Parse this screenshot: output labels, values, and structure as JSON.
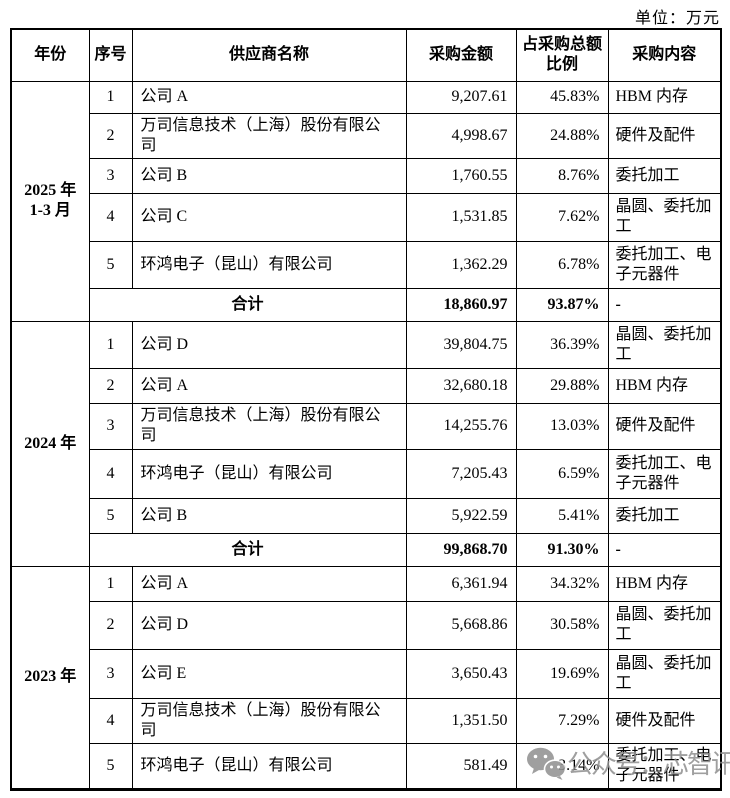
{
  "unit_label": "单位：万元",
  "watermark": {
    "icon": "wechat-icon",
    "text": "公众号：芯智讯"
  },
  "table": {
    "headers": [
      "年份",
      "序号",
      "供应商名称",
      "采购金额",
      "占采购总额比例",
      "采购内容"
    ],
    "groups": [
      {
        "year_lines": [
          "2025 年",
          "1-3 月"
        ],
        "rows": [
          {
            "no": "1",
            "supplier": "公司 A",
            "amount": "9,207.61",
            "ratio": "45.83%",
            "content": "HBM 内存"
          },
          {
            "no": "2",
            "supplier": "万司信息技术（上海）股份有限公司",
            "amount": "4,998.67",
            "ratio": "24.88%",
            "content": "硬件及配件"
          },
          {
            "no": "3",
            "supplier": "公司 B",
            "amount": "1,760.55",
            "ratio": "8.76%",
            "content": "委托加工"
          },
          {
            "no": "4",
            "supplier": "公司 C",
            "amount": "1,531.85",
            "ratio": "7.62%",
            "content": "晶圆、委托加工"
          },
          {
            "no": "5",
            "supplier": "环鸿电子（昆山）有限公司",
            "amount": "1,362.29",
            "ratio": "6.78%",
            "content": "委托加工、电子元器件"
          }
        ],
        "total": {
          "label": "合计",
          "amount": "18,860.97",
          "ratio": "93.87%",
          "content": "-"
        }
      },
      {
        "year_lines": [
          "2024 年"
        ],
        "rows": [
          {
            "no": "1",
            "supplier": "公司 D",
            "amount": "39,804.75",
            "ratio": "36.39%",
            "content": "晶圆、委托加工"
          },
          {
            "no": "2",
            "supplier": "公司 A",
            "amount": "32,680.18",
            "ratio": "29.88%",
            "content": "HBM 内存"
          },
          {
            "no": "3",
            "supplier": "万司信息技术（上海）股份有限公司",
            "amount": "14,255.76",
            "ratio": "13.03%",
            "content": "硬件及配件"
          },
          {
            "no": "4",
            "supplier": "环鸿电子（昆山）有限公司",
            "amount": "7,205.43",
            "ratio": "6.59%",
            "content": "委托加工、电子元器件"
          },
          {
            "no": "5",
            "supplier": "公司 B",
            "amount": "5,922.59",
            "ratio": "5.41%",
            "content": "委托加工"
          }
        ],
        "total": {
          "label": "合计",
          "amount": "99,868.70",
          "ratio": "91.30%",
          "content": "-"
        }
      },
      {
        "year_lines": [
          "2023 年"
        ],
        "rows": [
          {
            "no": "1",
            "supplier": "公司 A",
            "amount": "6,361.94",
            "ratio": "34.32%",
            "content": "HBM 内存"
          },
          {
            "no": "2",
            "supplier": "公司 D",
            "amount": "5,668.86",
            "ratio": "30.58%",
            "content": "晶圆、委托加工"
          },
          {
            "no": "3",
            "supplier": "公司 E",
            "amount": "3,650.43",
            "ratio": "19.69%",
            "content": "晶圆、委托加工"
          },
          {
            "no": "4",
            "supplier": "万司信息技术（上海）股份有限公司",
            "amount": "1,351.50",
            "ratio": "7.29%",
            "content": "硬件及配件"
          },
          {
            "no": "5",
            "supplier": "环鸿电子（昆山）有限公司",
            "amount": "581.49",
            "ratio": "3.14%",
            "content": "委托加工、电子元器件"
          }
        ],
        "total": null
      }
    ]
  }
}
